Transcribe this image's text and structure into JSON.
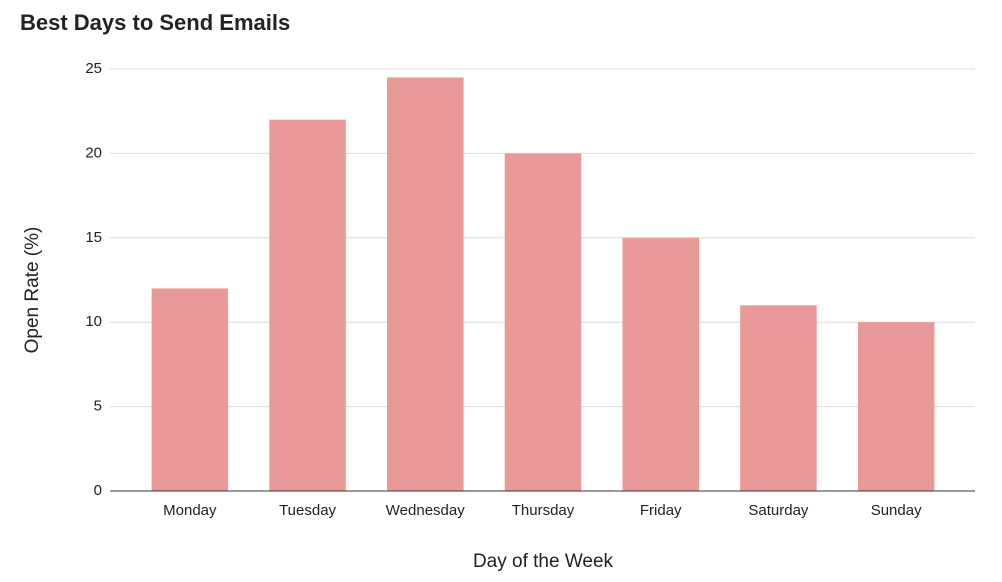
{
  "chart_data": {
    "type": "bar",
    "title": "Best Days to Send Emails",
    "x_label": "Day of the Week",
    "y_label": "Open Rate (%)",
    "categories": [
      "Monday",
      "Tuesday",
      "Wednesday",
      "Thursday",
      "Friday",
      "Saturday",
      "Sunday"
    ],
    "values": [
      12,
      22,
      24.5,
      20,
      15,
      11,
      10
    ],
    "color": "#ea9999",
    "ylim": [
      0,
      25
    ],
    "yticks": [
      0,
      5,
      10,
      15,
      20,
      25
    ],
    "grid": true
  }
}
